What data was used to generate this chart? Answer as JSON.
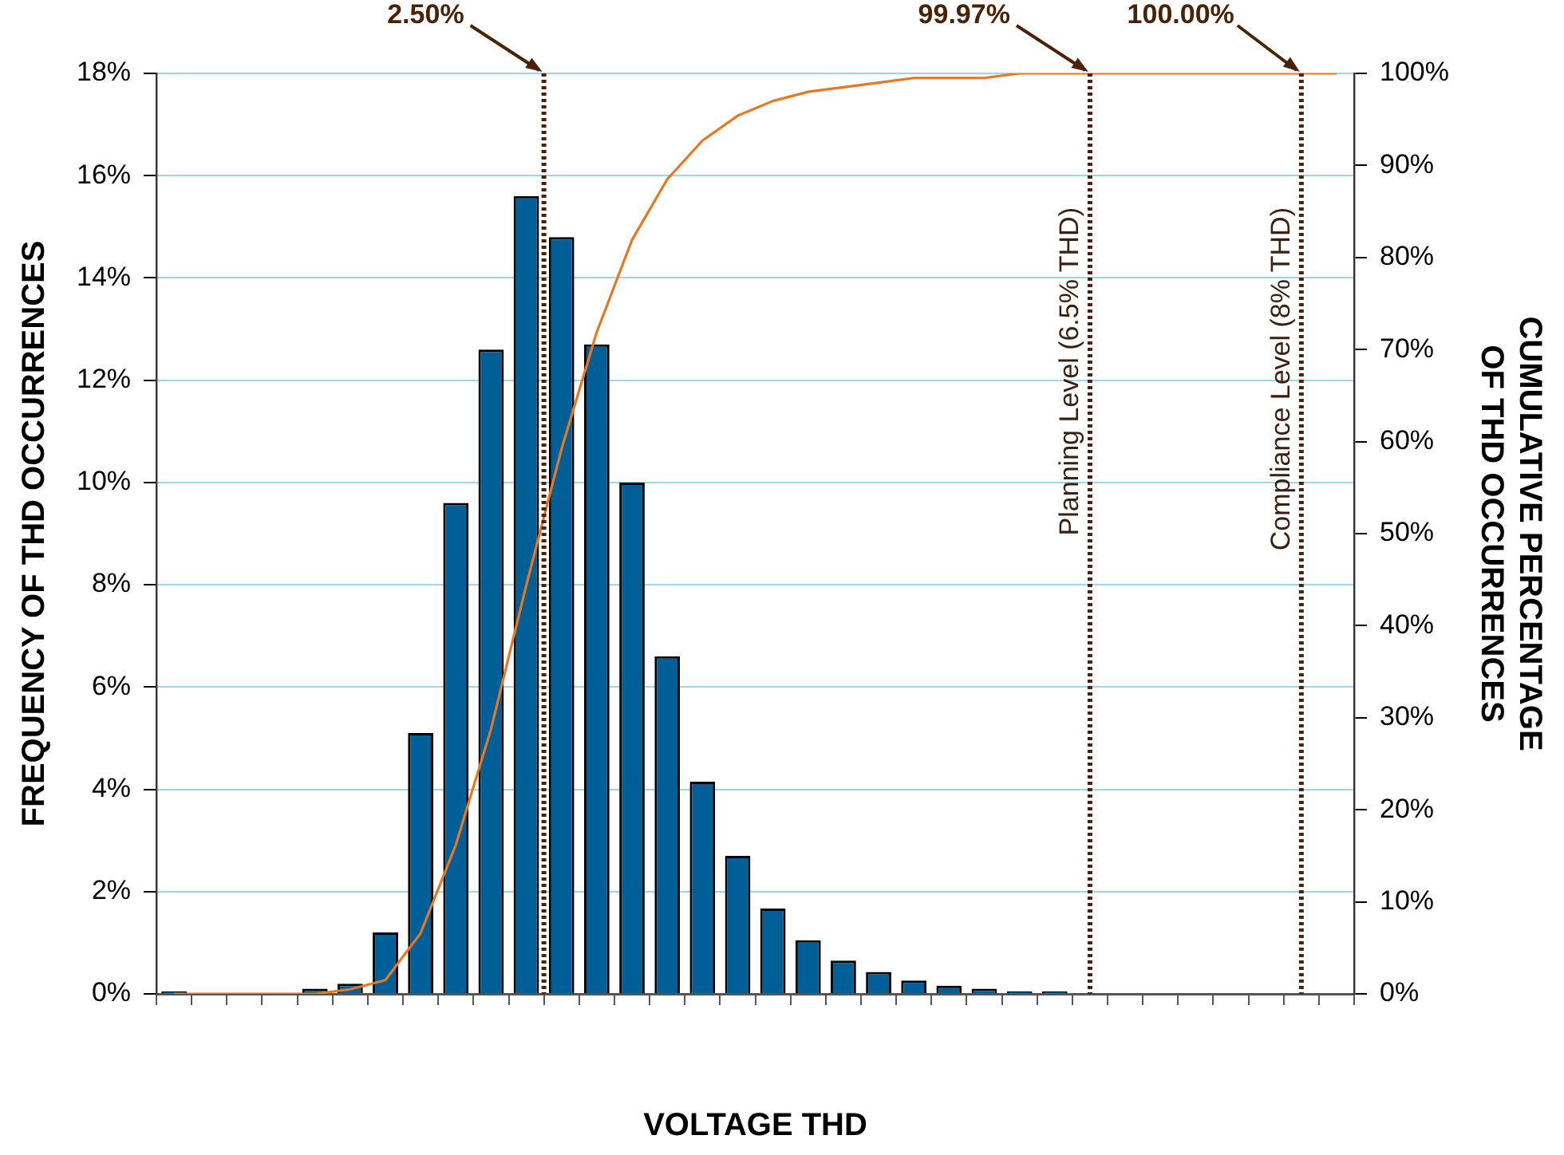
{
  "chart_data": {
    "type": "bar",
    "xlabel": "VOLTAGE THD",
    "ylabel": "FREQUENCY OF THD OCCURRENCES",
    "y2label": "CUMULATIVE PERCENTAGE OF THD OCCURRENCES",
    "categories": [
      null,
      null,
      null,
      null,
      null,
      null,
      null,
      null,
      null,
      null,
      null,
      null,
      null,
      null,
      null,
      null,
      null,
      null,
      null,
      null,
      null,
      null,
      null,
      null,
      null,
      null,
      null,
      null,
      null,
      null,
      null,
      null,
      null,
      null
    ],
    "series": [
      {
        "color": "#005f96",
        "values": [
          0.05,
          0,
          0,
          0,
          0.1,
          0.2,
          1.2,
          5.1,
          9.6,
          12.6,
          15.6,
          14.8,
          12.7,
          10.0,
          6.6,
          4.15,
          2.7,
          1.67,
          1.05,
          0.65,
          0.43,
          0.26,
          0.16,
          0.1,
          0.05,
          0.05,
          0,
          0,
          0,
          0,
          0,
          0,
          0,
          0
        ]
      },
      {
        "type": "line",
        "axis": "y2",
        "color": "#e87722",
        "values": [
          0,
          0,
          0,
          0,
          0,
          0.5,
          1.5,
          6.6,
          16.2,
          28.8,
          44.4,
          59.2,
          71.9,
          81.9,
          88.5,
          92.7,
          95.4,
          97.0,
          98.0,
          98.5,
          99.0,
          99.5,
          99.5,
          99.5,
          100,
          100,
          100,
          100,
          100,
          100,
          100,
          100,
          100,
          100
        ]
      }
    ],
    "ylim": [
      0,
      18
    ],
    "yticks": [
      {
        "value": 0,
        "label": "0%"
      },
      {
        "value": 2,
        "label": "2%"
      },
      {
        "value": 4,
        "label": "4%"
      },
      {
        "value": 6,
        "label": "6%"
      },
      {
        "value": 8,
        "label": "8%"
      },
      {
        "value": 10,
        "label": "10%"
      },
      {
        "value": 12,
        "label": "12%"
      },
      {
        "value": 14,
        "label": "14%"
      },
      {
        "value": 16,
        "label": "16%"
      },
      {
        "value": 18,
        "label": "18%"
      }
    ],
    "y2lim": [
      0,
      100
    ],
    "y2ticks": [
      {
        "value": 0,
        "label": "0%"
      },
      {
        "value": 10,
        "label": "10%"
      },
      {
        "value": 20,
        "label": "20%"
      },
      {
        "value": 30,
        "label": "30%"
      },
      {
        "value": 40,
        "label": "40%"
      },
      {
        "value": 50,
        "label": "50%"
      },
      {
        "value": 60,
        "label": "60%"
      },
      {
        "value": 70,
        "label": "70%"
      },
      {
        "value": 80,
        "label": "80%"
      },
      {
        "value": 90,
        "label": "90%"
      },
      {
        "value": 100,
        "label": "100%"
      }
    ],
    "annotations": [
      "2.50%",
      "99.97%",
      "100.00%",
      "Planning Level (6.5% THD)",
      "Compliance Level (8% THD)"
    ],
    "grid": "y",
    "marker": "none",
    "line_style": "solid",
    "legend": false
  }
}
